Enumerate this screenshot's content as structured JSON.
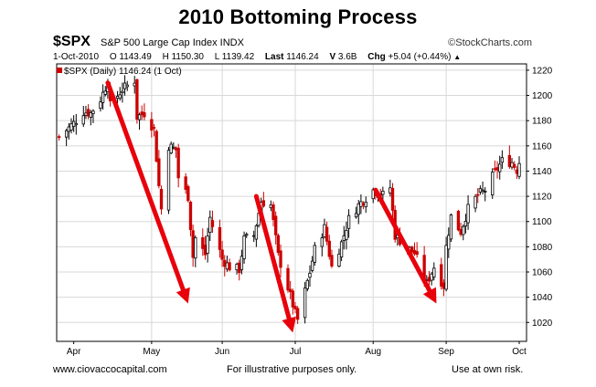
{
  "title": "2010 Bottoming Process",
  "header": {
    "symbol": "$SPX",
    "name": "S&P 500 Large Cap Index INDX",
    "source": "©StockCharts.com",
    "date": "1-Oct-2010",
    "open": "O 1143.49",
    "high": "H 1150.30",
    "low": "L 1139.42",
    "last_label": "Last",
    "last_value": "1146.24",
    "volume_label": "V",
    "volume_value": "3.6B",
    "chg_label": "Chg",
    "chg_value": "+5.04 (+0.44%)",
    "chg_arrow": "▲"
  },
  "footer": {
    "left": "www.ciovaccocapital.com",
    "middle": "For illustrative purposes only.",
    "right": "Use at own risk."
  },
  "colors": {
    "up": "#000000",
    "down": "#cc0000",
    "arrow": "#e8000b",
    "grid": "#d8d8d8",
    "frame": "#000000"
  },
  "chart_data": {
    "type": "candlestick",
    "legend": "$SPX (Daily) 1146.24 (1 Oct)",
    "x_labels": [
      "Apr",
      "May",
      "Jun",
      "Jul",
      "Aug",
      "Sep",
      "Oct"
    ],
    "x_label_dates": [
      "2010-04-01",
      "2010-05-03",
      "2010-06-01",
      "2010-07-01",
      "2010-08-02",
      "2010-09-01",
      "2010-10-01"
    ],
    "y_ticks": [
      1020,
      1040,
      1060,
      1080,
      1100,
      1120,
      1140,
      1160,
      1180,
      1200,
      1220
    ],
    "ylim": [
      1005,
      1225
    ],
    "grid": true,
    "closes": [
      {
        "date": "2010-03-26",
        "close": 1167
      },
      {
        "date": "2010-04-01",
        "close": 1178
      },
      {
        "date": "2010-04-05",
        "close": 1187
      },
      {
        "date": "2010-04-08",
        "close": 1186
      },
      {
        "date": "2010-04-12",
        "close": 1197
      },
      {
        "date": "2010-04-15",
        "close": 1211
      },
      {
        "date": "2010-04-16",
        "close": 1192
      },
      {
        "date": "2010-04-21",
        "close": 1205
      },
      {
        "date": "2010-04-26",
        "close": 1212
      },
      {
        "date": "2010-04-27",
        "close": 1183
      },
      {
        "date": "2010-04-30",
        "close": 1186
      },
      {
        "date": "2010-05-04",
        "close": 1173
      },
      {
        "date": "2010-05-06",
        "close": 1128
      },
      {
        "date": "2010-05-07",
        "close": 1110
      },
      {
        "date": "2010-05-10",
        "close": 1160
      },
      {
        "date": "2010-05-13",
        "close": 1157
      },
      {
        "date": "2010-05-14",
        "close": 1135
      },
      {
        "date": "2010-05-18",
        "close": 1120
      },
      {
        "date": "2010-05-20",
        "close": 1072
      },
      {
        "date": "2010-05-21",
        "close": 1087
      },
      {
        "date": "2010-05-25",
        "close": 1074
      },
      {
        "date": "2010-05-27",
        "close": 1103
      },
      {
        "date": "2010-06-01",
        "close": 1070
      },
      {
        "date": "2010-06-04",
        "close": 1064
      },
      {
        "date": "2010-06-08",
        "close": 1062
      },
      {
        "date": "2010-06-10",
        "close": 1086
      },
      {
        "date": "2010-06-14",
        "close": 1089
      },
      {
        "date": "2010-06-17",
        "close": 1116
      },
      {
        "date": "2010-06-21",
        "close": 1113
      },
      {
        "date": "2010-06-24",
        "close": 1073
      },
      {
        "date": "2010-06-29",
        "close": 1041
      },
      {
        "date": "2010-07-01",
        "close": 1027
      },
      {
        "date": "2010-07-02",
        "close": 1022
      },
      {
        "date": "2010-07-07",
        "close": 1060
      },
      {
        "date": "2010-07-09",
        "close": 1078
      },
      {
        "date": "2010-07-13",
        "close": 1095
      },
      {
        "date": "2010-07-16",
        "close": 1064
      },
      {
        "date": "2010-07-20",
        "close": 1083
      },
      {
        "date": "2010-07-23",
        "close": 1102
      },
      {
        "date": "2010-07-27",
        "close": 1113
      },
      {
        "date": "2010-08-02",
        "close": 1125
      },
      {
        "date": "2010-08-06",
        "close": 1121
      },
      {
        "date": "2010-08-09",
        "close": 1127
      },
      {
        "date": "2010-08-11",
        "close": 1089
      },
      {
        "date": "2010-08-16",
        "close": 1079
      },
      {
        "date": "2010-08-19",
        "close": 1075
      },
      {
        "date": "2010-08-24",
        "close": 1051
      },
      {
        "date": "2010-08-27",
        "close": 1064
      },
      {
        "date": "2010-08-31",
        "close": 1049
      },
      {
        "date": "2010-09-01",
        "close": 1080
      },
      {
        "date": "2010-09-03",
        "close": 1104
      },
      {
        "date": "2010-09-07",
        "close": 1092
      },
      {
        "date": "2010-09-10",
        "close": 1110
      },
      {
        "date": "2010-09-14",
        "close": 1121
      },
      {
        "date": "2010-09-17",
        "close": 1125
      },
      {
        "date": "2010-09-21",
        "close": 1139
      },
      {
        "date": "2010-09-24",
        "close": 1148
      },
      {
        "date": "2010-09-28",
        "close": 1147
      },
      {
        "date": "2010-09-30",
        "close": 1141
      },
      {
        "date": "2010-10-01",
        "close": 1146
      }
    ],
    "annotations": [
      {
        "type": "arrow",
        "from": {
          "date": "2010-04-15",
          "value": 1210
        },
        "to": {
          "date": "2010-05-18",
          "value": 1035
        }
      },
      {
        "type": "arrow",
        "from": {
          "date": "2010-06-15",
          "value": 1120
        },
        "to": {
          "date": "2010-06-30",
          "value": 1012
        }
      },
      {
        "type": "arrow",
        "from": {
          "date": "2010-08-03",
          "value": 1125
        },
        "to": {
          "date": "2010-08-28",
          "value": 1035
        }
      }
    ]
  }
}
